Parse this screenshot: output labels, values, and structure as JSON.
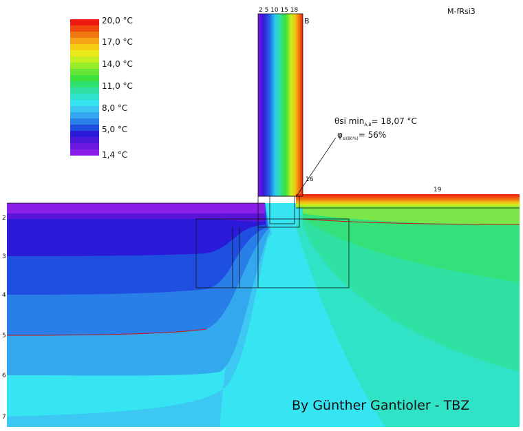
{
  "title": "M-fRsi3",
  "legend": {
    "labels": [
      "20,0 °C",
      "17,0 °C",
      "14,0 °C",
      "11,0 °C",
      "8,0 °C",
      "5,0 °C",
      "1,4 °C"
    ]
  },
  "top_labels": "2 5 10 15 18",
  "corner_label": "B",
  "annotation": {
    "theta": "θsi min",
    "theta_sub": "A,B",
    "theta_value": "= 18,07 °C",
    "phi": "φ",
    "phi_sub": "si(80%)",
    "phi_value": "= 56%"
  },
  "markers": [
    "16",
    "19"
  ],
  "depth_labels": [
    "2",
    "3",
    "4",
    "5",
    "6",
    "7"
  ],
  "credit": "By Günther Gantioler - TBZ"
}
